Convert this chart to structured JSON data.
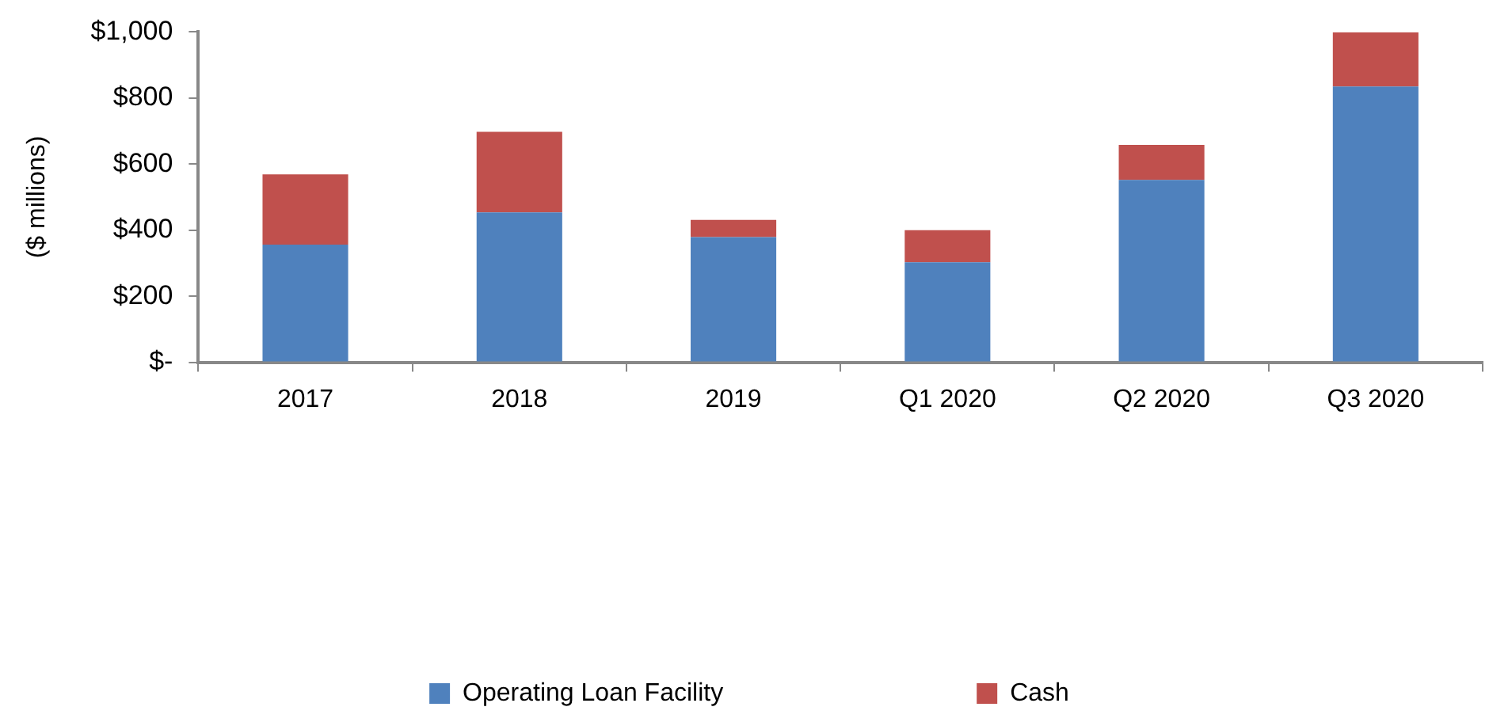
{
  "chart_data": {
    "type": "bar",
    "stacked": true,
    "ylabel": "($ millions)",
    "categories": [
      "2017",
      "2018",
      "2019",
      "Q1 2020",
      "Q2 2020",
      "Q3 2020"
    ],
    "series": [
      {
        "name": "Operating Loan Facility",
        "color": "#4f81bd",
        "values": [
          356,
          454,
          379,
          303,
          552,
          835
        ]
      },
      {
        "name": "Cash",
        "color": "#c0504d",
        "values": [
          213,
          244,
          52,
          97,
          106,
          164
        ]
      }
    ],
    "ylim": [
      0,
      1000
    ],
    "yticks": [
      {
        "value": 0,
        "label": "$-"
      },
      {
        "value": 200,
        "label": "$200"
      },
      {
        "value": 400,
        "label": "$400"
      },
      {
        "value": 600,
        "label": "$600"
      },
      {
        "value": 800,
        "label": "$800"
      },
      {
        "value": 1000,
        "label": "$1,000"
      }
    ],
    "grid": false,
    "legend": "bottom"
  }
}
